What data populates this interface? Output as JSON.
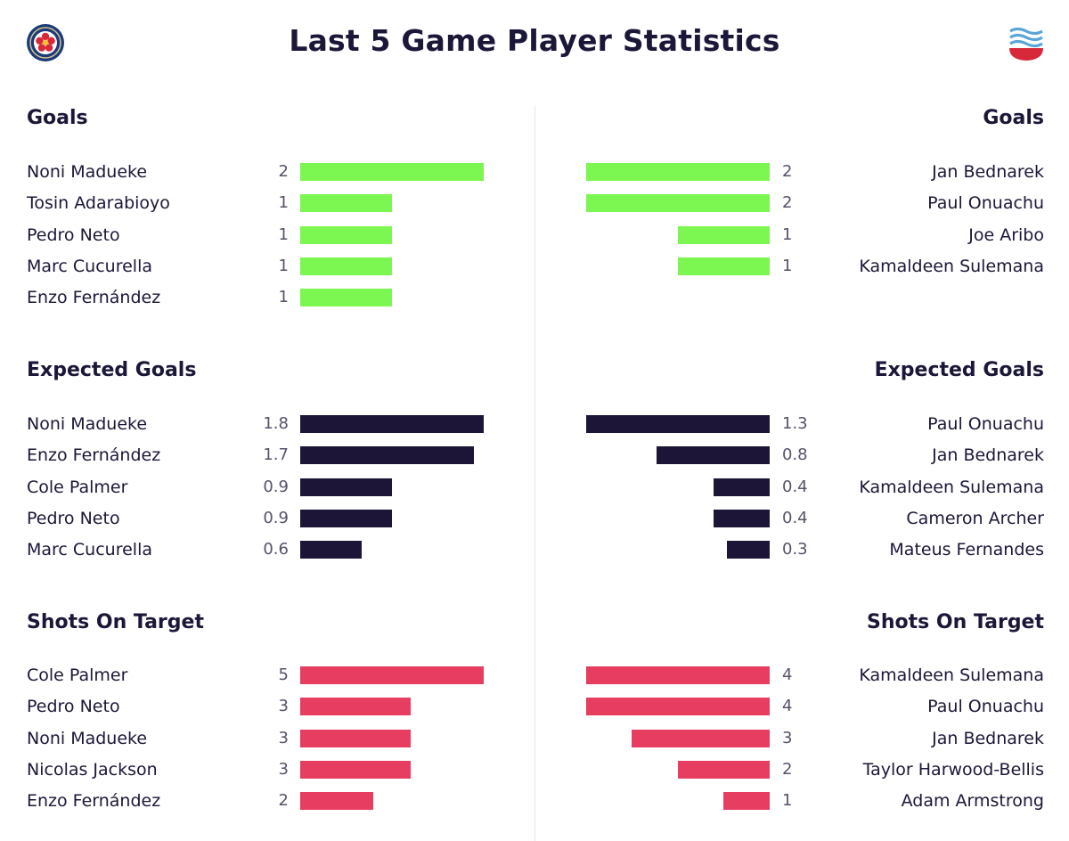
{
  "title": "Last 5 Game Player Statistics",
  "crests": {
    "left": "chelsea-crest-icon",
    "right": "southampton-crest-icon"
  },
  "colors": {
    "goals": "#7cf650",
    "expected_goals": "#1d1538",
    "shots_on_target": "#e63d61",
    "text": "#1b1738"
  },
  "left": {
    "goals": {
      "title": "Goals",
      "max": 2,
      "rows": [
        {
          "name": "Noni Madueke",
          "value": "2"
        },
        {
          "name": "Tosin Adarabioyo",
          "value": "1"
        },
        {
          "name": "Pedro Neto",
          "value": "1"
        },
        {
          "name": "Marc Cucurella",
          "value": "1"
        },
        {
          "name": "Enzo Fernández",
          "value": "1"
        }
      ]
    },
    "xg": {
      "title": "Expected Goals",
      "max": 1.8,
      "rows": [
        {
          "name": "Noni Madueke",
          "value": "1.8"
        },
        {
          "name": "Enzo Fernández",
          "value": "1.7"
        },
        {
          "name": "Cole Palmer",
          "value": "0.9"
        },
        {
          "name": "Pedro Neto",
          "value": "0.9"
        },
        {
          "name": "Marc Cucurella",
          "value": "0.6"
        }
      ]
    },
    "sot": {
      "title": "Shots On Target",
      "max": 5,
      "rows": [
        {
          "name": "Cole Palmer",
          "value": "5"
        },
        {
          "name": "Pedro Neto",
          "value": "3"
        },
        {
          "name": "Noni Madueke",
          "value": "3"
        },
        {
          "name": "Nicolas Jackson",
          "value": "3"
        },
        {
          "name": "Enzo Fernández",
          "value": "2"
        }
      ]
    }
  },
  "right": {
    "goals": {
      "title": "Goals",
      "max": 2,
      "rows": [
        {
          "name": "Jan Bednarek",
          "value": "2"
        },
        {
          "name": "Paul Onuachu",
          "value": "2"
        },
        {
          "name": "Joe Aribo",
          "value": "1"
        },
        {
          "name": "Kamaldeen Sulemana",
          "value": "1"
        }
      ]
    },
    "xg": {
      "title": "Expected Goals",
      "max": 1.3,
      "rows": [
        {
          "name": "Paul Onuachu",
          "value": "1.3"
        },
        {
          "name": "Jan Bednarek",
          "value": "0.8"
        },
        {
          "name": "Kamaldeen Sulemana",
          "value": "0.4"
        },
        {
          "name": "Cameron Archer",
          "value": "0.4"
        },
        {
          "name": "Mateus Fernandes",
          "value": "0.3"
        }
      ]
    },
    "sot": {
      "title": "Shots On Target",
      "max": 4,
      "rows": [
        {
          "name": "Kamaldeen Sulemana",
          "value": "4"
        },
        {
          "name": "Paul Onuachu",
          "value": "4"
        },
        {
          "name": "Jan Bednarek",
          "value": "3"
        },
        {
          "name": "Taylor Harwood-Bellis",
          "value": "2"
        },
        {
          "name": "Adam Armstrong",
          "value": "1"
        }
      ]
    }
  },
  "chart_data": [
    {
      "type": "bar",
      "title": "Goals",
      "categories": [
        "Noni Madueke",
        "Tosin Adarabioyo",
        "Pedro Neto",
        "Marc Cucurella",
        "Enzo Fernández"
      ],
      "values": [
        2,
        1,
        1,
        1,
        1
      ]
    },
    {
      "type": "bar",
      "title": "Goals",
      "categories": [
        "Jan Bednarek",
        "Paul Onuachu",
        "Joe Aribo",
        "Kamaldeen Sulemana"
      ],
      "values": [
        2,
        2,
        1,
        1
      ]
    },
    {
      "type": "bar",
      "title": "Expected Goals",
      "categories": [
        "Noni Madueke",
        "Enzo Fernández",
        "Cole Palmer",
        "Pedro Neto",
        "Marc Cucurella"
      ],
      "values": [
        1.8,
        1.7,
        0.9,
        0.9,
        0.6
      ]
    },
    {
      "type": "bar",
      "title": "Expected Goals",
      "categories": [
        "Paul Onuachu",
        "Jan Bednarek",
        "Kamaldeen Sulemana",
        "Cameron Archer",
        "Mateus Fernandes"
      ],
      "values": [
        1.3,
        0.8,
        0.4,
        0.4,
        0.3
      ]
    },
    {
      "type": "bar",
      "title": "Shots On Target",
      "categories": [
        "Cole Palmer",
        "Pedro Neto",
        "Noni Madueke",
        "Nicolas Jackson",
        "Enzo Fernández"
      ],
      "values": [
        5,
        3,
        3,
        3,
        2
      ]
    },
    {
      "type": "bar",
      "title": "Shots On Target",
      "categories": [
        "Kamaldeen Sulemana",
        "Paul Onuachu",
        "Jan Bednarek",
        "Taylor Harwood-Bellis",
        "Adam Armstrong"
      ],
      "values": [
        4,
        4,
        3,
        2,
        1
      ]
    }
  ]
}
